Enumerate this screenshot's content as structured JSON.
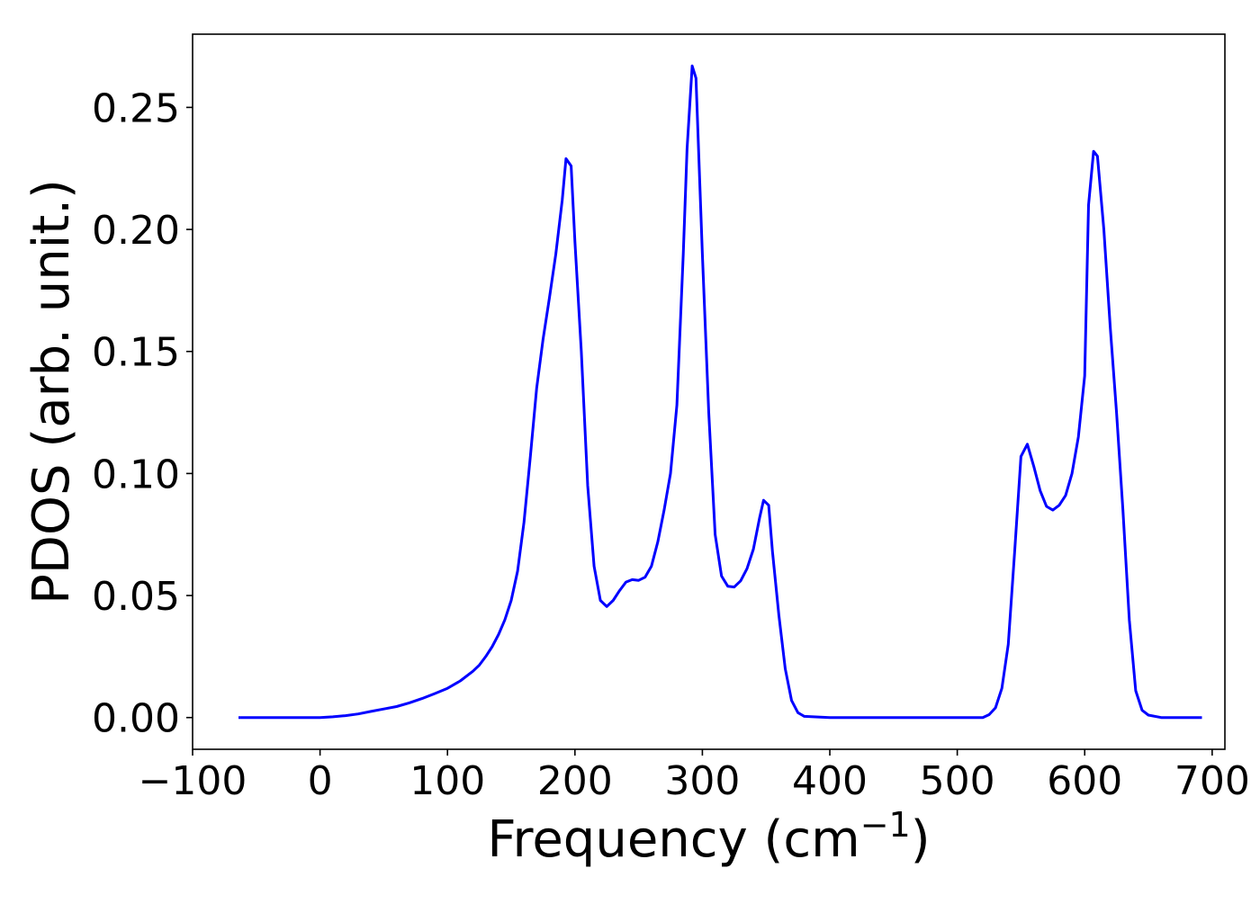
{
  "chart_data": {
    "type": "line",
    "title": "",
    "xlabel": "Frequency (cm",
    "xlabel_superscript": "−1",
    "xlabel_close": ")",
    "ylabel": "PDOS (arb. unit.)",
    "xlim": [
      -100,
      710
    ],
    "ylim": [
      -0.013,
      0.28
    ],
    "x_ticks": [
      -100,
      0,
      100,
      200,
      300,
      400,
      500,
      600,
      700
    ],
    "x_tick_labels": [
      "−100",
      "0",
      "100",
      "200",
      "300",
      "400",
      "500",
      "600",
      "700"
    ],
    "y_ticks": [
      0.0,
      0.05,
      0.1,
      0.15,
      0.2,
      0.25
    ],
    "y_tick_labels": [
      "0.00",
      "0.05",
      "0.10",
      "0.15",
      "0.20",
      "0.25"
    ],
    "grid": false,
    "series": [
      {
        "color": "#0000ff",
        "x": [
          -64,
          0,
          10,
          20,
          30,
          40,
          50,
          60,
          70,
          80,
          90,
          100,
          110,
          120,
          125,
          130,
          135,
          140,
          145,
          150,
          155,
          160,
          165,
          170,
          175,
          180,
          185,
          190,
          193,
          197,
          200,
          205,
          210,
          215,
          220,
          225,
          230,
          235,
          240,
          245,
          250,
          255,
          260,
          265,
          270,
          275,
          280,
          285,
          288,
          292,
          295,
          300,
          305,
          310,
          315,
          320,
          325,
          330,
          335,
          340,
          345,
          348,
          352,
          355,
          360,
          365,
          370,
          375,
          380,
          400,
          450,
          500,
          520,
          525,
          530,
          535,
          540,
          545,
          550,
          555,
          560,
          565,
          570,
          575,
          580,
          585,
          590,
          595,
          600,
          603,
          607,
          610,
          615,
          620,
          625,
          630,
          635,
          640,
          645,
          650,
          660,
          692
        ],
        "y": [
          0,
          0,
          0.0003,
          0.0008,
          0.0015,
          0.0025,
          0.0035,
          0.0045,
          0.006,
          0.0078,
          0.0098,
          0.012,
          0.015,
          0.019,
          0.0215,
          0.025,
          0.029,
          0.034,
          0.04,
          0.048,
          0.06,
          0.08,
          0.107,
          0.135,
          0.155,
          0.172,
          0.19,
          0.212,
          0.229,
          0.226,
          0.195,
          0.15,
          0.095,
          0.062,
          0.048,
          0.0455,
          0.048,
          0.052,
          0.0555,
          0.0565,
          0.0562,
          0.0575,
          0.062,
          0.072,
          0.085,
          0.1,
          0.128,
          0.19,
          0.233,
          0.267,
          0.262,
          0.19,
          0.125,
          0.075,
          0.058,
          0.0538,
          0.0535,
          0.056,
          0.061,
          0.069,
          0.082,
          0.089,
          0.087,
          0.068,
          0.042,
          0.02,
          0.007,
          0.002,
          0.0005,
          0,
          0,
          0,
          0,
          0.0012,
          0.004,
          0.012,
          0.03,
          0.068,
          0.107,
          0.112,
          0.103,
          0.093,
          0.0865,
          0.085,
          0.087,
          0.091,
          0.1,
          0.115,
          0.14,
          0.21,
          0.232,
          0.23,
          0.2,
          0.16,
          0.125,
          0.085,
          0.04,
          0.011,
          0.003,
          0.001,
          0,
          0
        ]
      }
    ]
  }
}
